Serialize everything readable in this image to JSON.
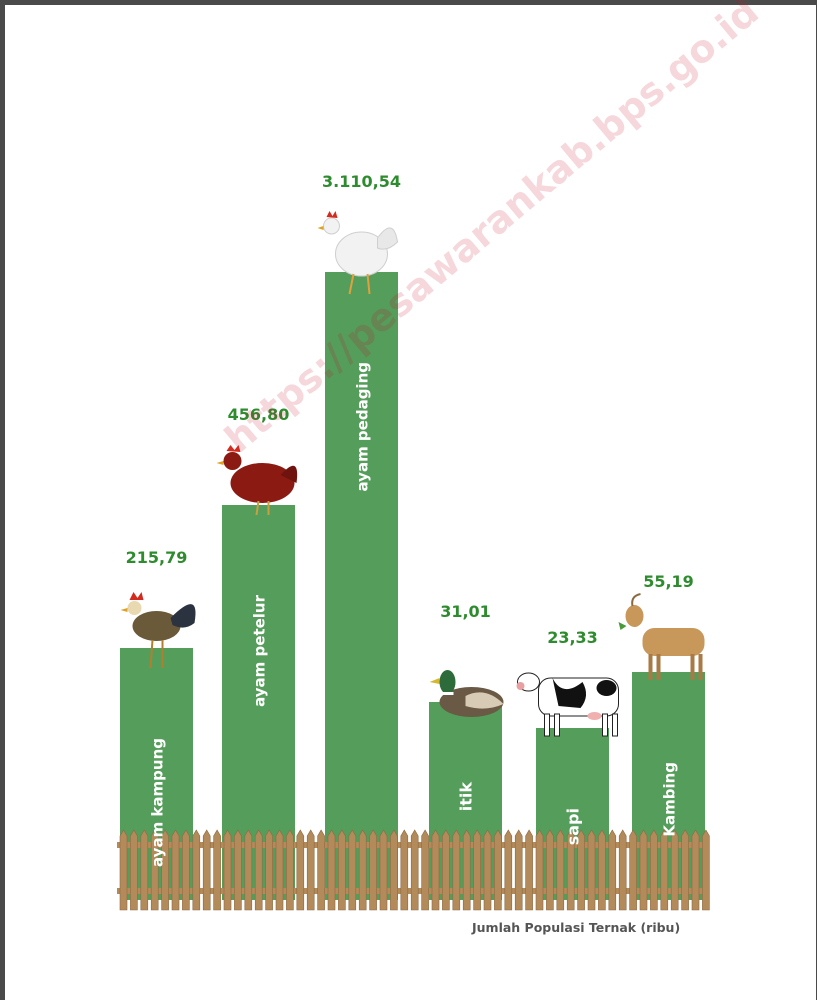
{
  "chart_data": {
    "type": "bar",
    "categories": [
      "ayam kampung",
      "ayam petelur",
      "ayam pedaging",
      "itik",
      "sapi",
      "Kambing"
    ],
    "value_labels": [
      "215,79",
      "456,80",
      "3.110,54",
      "31,01",
      "23,33",
      "55,19"
    ],
    "values": [
      215.79,
      456.8,
      3110.54,
      31.01,
      23.33,
      55.19
    ],
    "icons": [
      "rooster-icon",
      "red-hen-icon",
      "white-chicken-icon",
      "duck-icon",
      "cow-icon",
      "goat-icon"
    ],
    "xlabel": "Jumlah Populasi Ternak (ribu)",
    "bar_color": "#559d5a",
    "value_color": "#2e8b2e",
    "fence_color": "#b38a5a"
  },
  "watermark": "https://pesawarankab.bps.go.id"
}
